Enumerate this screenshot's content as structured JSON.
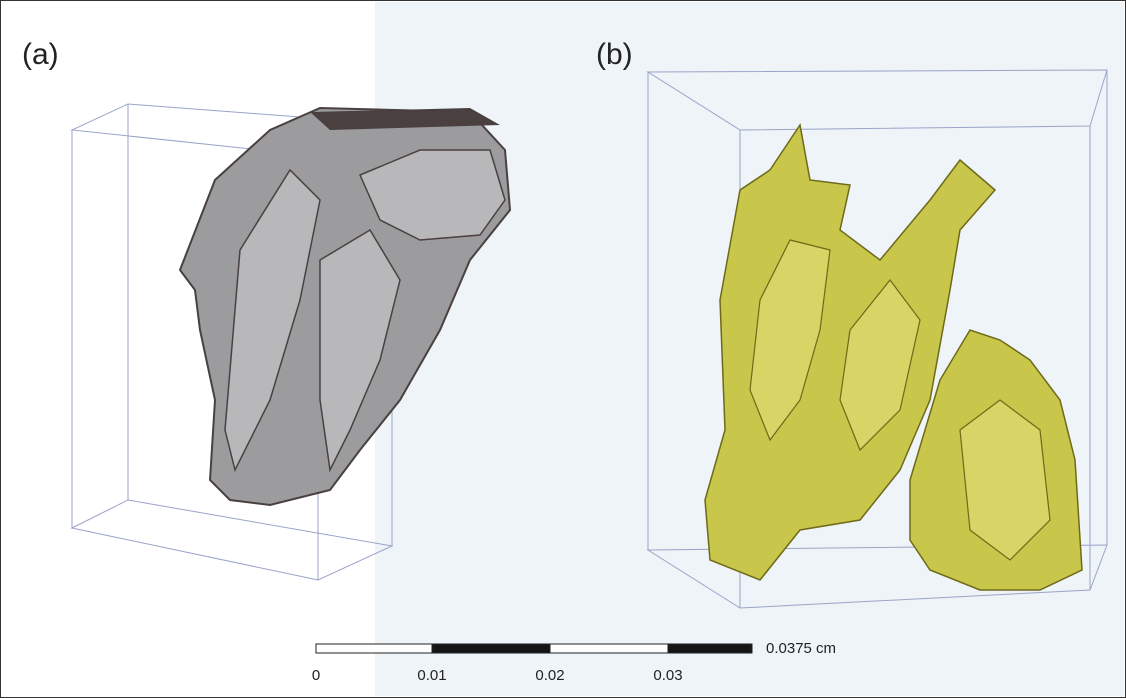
{
  "panels": [
    {
      "label": "(a)"
    },
    {
      "label": "(b)"
    }
  ],
  "scale_bar": {
    "ticks": [
      "0",
      "0.01",
      "0.02",
      "0.03"
    ],
    "end_label": "0.0375 cm"
  }
}
